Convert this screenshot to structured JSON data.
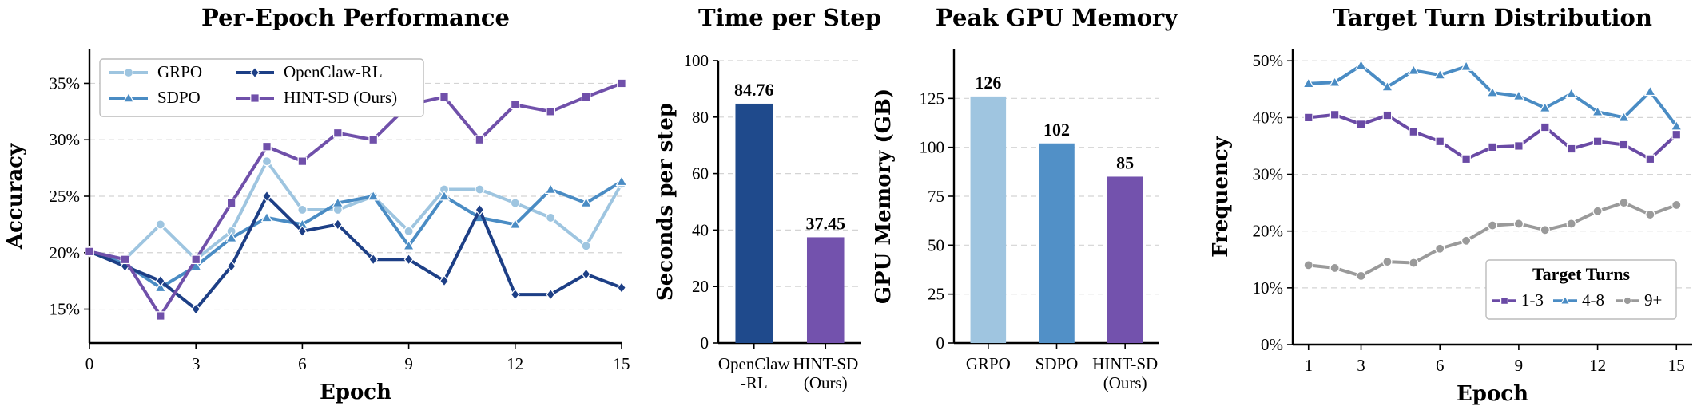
{
  "chart_data": [
    {
      "type": "line",
      "title": "Per-Epoch Performance",
      "xlabel": "Epoch",
      "ylabel": "Accuracy",
      "xlim": [
        0,
        15
      ],
      "ylim": [
        12,
        38
      ],
      "xticks": [
        0,
        3,
        6,
        9,
        12,
        15
      ],
      "yticks": [
        15,
        20,
        25,
        30,
        35
      ],
      "ytick_labels": [
        "15%",
        "20%",
        "25%",
        "30%",
        "35%"
      ],
      "grid": "y, dashed",
      "legend_position": "top-left",
      "x": [
        0,
        1,
        2,
        3,
        4,
        5,
        6,
        7,
        8,
        9,
        10,
        11,
        12,
        13,
        14,
        15
      ],
      "series": [
        {
          "name": "GRPO",
          "color": "#9ec5e0",
          "marker": "circle",
          "values": [
            20.1,
            19.4,
            22.5,
            19.4,
            21.9,
            28.1,
            23.8,
            23.8,
            25.0,
            21.9,
            25.6,
            25.6,
            24.4,
            23.1,
            20.6,
            26.1
          ]
        },
        {
          "name": "SDPO",
          "color": "#4a8cc4",
          "marker": "triangle",
          "values": [
            20.1,
            19.0,
            16.9,
            18.8,
            21.3,
            23.1,
            22.5,
            24.4,
            25.0,
            20.6,
            25.0,
            23.1,
            22.5,
            25.6,
            24.4,
            26.3
          ]
        },
        {
          "name": "OpenClaw-RL",
          "color": "#1d3f86",
          "marker": "diamond",
          "values": [
            20.1,
            18.8,
            17.5,
            15.0,
            18.8,
            25.0,
            21.9,
            22.5,
            19.4,
            19.4,
            17.5,
            23.8,
            16.3,
            16.3,
            18.1,
            16.9
          ]
        },
        {
          "name": "HINT-SD (Ours)",
          "color": "#7050aa",
          "marker": "square",
          "values": [
            20.1,
            19.4,
            14.4,
            19.4,
            24.4,
            29.4,
            28.1,
            30.6,
            30.0,
            33.1,
            33.8,
            30.0,
            33.1,
            32.5,
            33.8,
            35.0
          ]
        }
      ]
    },
    {
      "type": "bar",
      "title": "Time per Step",
      "ylabel": "Seconds per step",
      "ylim": [
        0,
        100
      ],
      "yticks": [
        0,
        20,
        40,
        60,
        80,
        100
      ],
      "categories": [
        "OpenClaw\n-RL",
        "HINT-SD\n(Ours)"
      ],
      "values": [
        84.76,
        37.45
      ],
      "value_labels": [
        "84.76",
        "37.45"
      ],
      "colors": [
        "#1f4a8c",
        "#7352ad"
      ],
      "grid": "y, dashed"
    },
    {
      "type": "bar",
      "title": "Peak GPU Memory",
      "ylabel": "GPU Memory (GB)",
      "ylim": [
        0,
        150
      ],
      "yticks": [
        0,
        25,
        50,
        75,
        100,
        125
      ],
      "categories": [
        "GRPO",
        "SDPO",
        "HINT-SD\n(Ours)"
      ],
      "values": [
        126,
        102,
        85
      ],
      "value_labels": [
        "126",
        "102",
        "85"
      ],
      "colors": [
        "#9fc5e0",
        "#5190c7",
        "#7352ad"
      ],
      "grid": "y, dashed"
    },
    {
      "type": "line",
      "title": "Target Turn Distribution",
      "xlabel": "Epoch",
      "ylabel": "Frequency",
      "xlim": [
        0.4,
        15.6
      ],
      "ylim": [
        0,
        52
      ],
      "xticks": [
        1,
        3,
        6,
        9,
        12,
        15
      ],
      "yticks": [
        0,
        10,
        20,
        30,
        40,
        50
      ],
      "ytick_labels": [
        "0%",
        "10%",
        "20%",
        "30%",
        "40%",
        "50%"
      ],
      "grid": "y, dashed",
      "legend_title": "Target Turns",
      "legend_position": "lower-right",
      "x": [
        1,
        2,
        3,
        4,
        5,
        6,
        7,
        8,
        9,
        10,
        11,
        12,
        13,
        14,
        15
      ],
      "series": [
        {
          "name": "1-3",
          "color": "#6a4aa5",
          "marker": "square",
          "values": [
            40.0,
            40.5,
            38.8,
            40.4,
            37.5,
            35.8,
            32.7,
            34.8,
            35.0,
            38.3,
            34.5,
            35.8,
            35.2,
            32.7,
            37.0
          ]
        },
        {
          "name": "4-8",
          "color": "#4a8cc4",
          "marker": "triangle",
          "values": [
            46.0,
            46.2,
            49.2,
            45.4,
            48.3,
            47.5,
            49.0,
            44.4,
            43.8,
            41.7,
            44.2,
            41.0,
            40.0,
            44.6,
            38.5
          ]
        },
        {
          "name": "9+",
          "color": "#9a9a9a",
          "marker": "circle",
          "values": [
            14.0,
            13.5,
            12.1,
            14.6,
            14.4,
            16.9,
            18.3,
            21.0,
            21.3,
            20.2,
            21.3,
            23.5,
            25.0,
            22.9,
            24.6
          ]
        }
      ]
    }
  ]
}
